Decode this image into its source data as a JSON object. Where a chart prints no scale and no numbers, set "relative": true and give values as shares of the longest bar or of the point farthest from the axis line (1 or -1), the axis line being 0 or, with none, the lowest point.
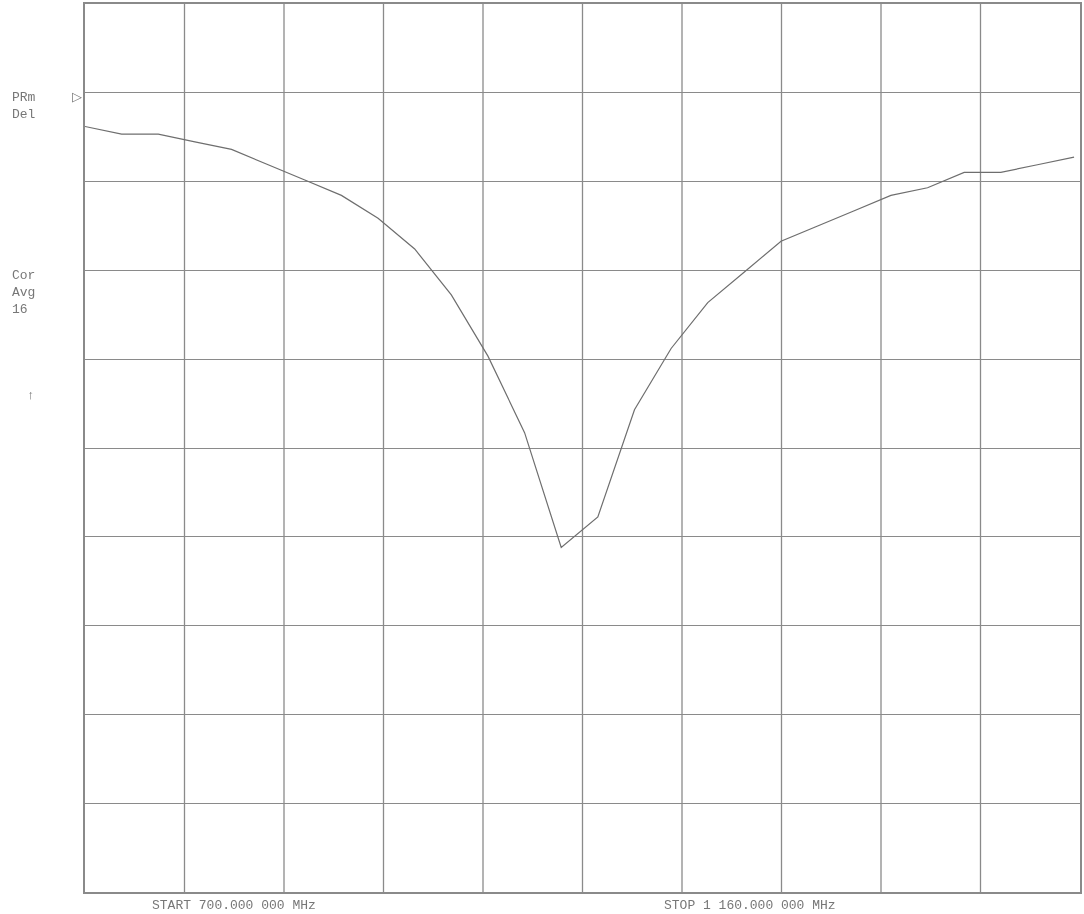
{
  "chart_data": {
    "type": "line",
    "relative": true,
    "grid": true,
    "marker": "none",
    "line_style": "solid",
    "categories": [
      null,
      null,
      null,
      null,
      null,
      null,
      null,
      null,
      null,
      null,
      null,
      null,
      null,
      null,
      null,
      null,
      null,
      null,
      null,
      null,
      null,
      null,
      null,
      null,
      null,
      null,
      null,
      null
    ],
    "series": [
      {
        "color": "#6e6e6e",
        "values": [
          1.0,
          0.99,
          0.99,
          0.98,
          0.97,
          0.95,
          0.93,
          0.91,
          0.88,
          0.84,
          0.78,
          0.7,
          0.6,
          0.45,
          0.49,
          0.63,
          0.71,
          0.77,
          0.81,
          0.85,
          0.87,
          0.89,
          0.91,
          0.92,
          0.94,
          0.94,
          0.95,
          0.96
        ]
      }
    ],
    "annotations": [
      "PRm\nDel",
      "Cor\nAvg\n16",
      "↑",
      "▷",
      "START 700.000 000 MHz",
      "STOP 1 160.000 000 MHz"
    ]
  }
}
